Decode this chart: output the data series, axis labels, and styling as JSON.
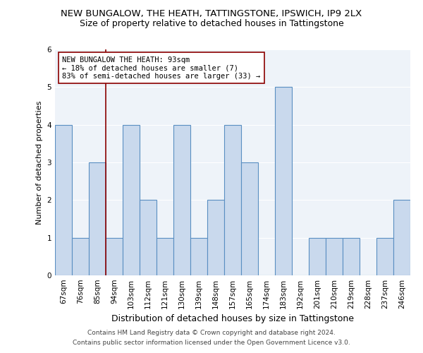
{
  "title": "NEW BUNGALOW, THE HEATH, TATTINGSTONE, IPSWICH, IP9 2LX",
  "subtitle": "Size of property relative to detached houses in Tattingstone",
  "xlabel": "Distribution of detached houses by size in Tattingstone",
  "ylabel": "Number of detached properties",
  "categories": [
    "67sqm",
    "76sqm",
    "85sqm",
    "94sqm",
    "103sqm",
    "112sqm",
    "121sqm",
    "130sqm",
    "139sqm",
    "148sqm",
    "157sqm",
    "165sqm",
    "174sqm",
    "183sqm",
    "192sqm",
    "201sqm",
    "210sqm",
    "219sqm",
    "228sqm",
    "237sqm",
    "246sqm"
  ],
  "values": [
    4,
    1,
    3,
    1,
    4,
    2,
    1,
    4,
    1,
    2,
    4,
    3,
    0,
    5,
    0,
    1,
    1,
    1,
    0,
    1,
    2
  ],
  "bar_color": "#c9d9ed",
  "bar_edge_color": "#5a8fc2",
  "reference_line_color": "#8b0000",
  "annotation_text": "NEW BUNGALOW THE HEATH: 93sqm\n← 18% of detached houses are smaller (7)\n83% of semi-detached houses are larger (33) →",
  "annotation_box_color": "#ffffff",
  "annotation_box_edge_color": "#8b0000",
  "ylim": [
    0,
    6
  ],
  "yticks": [
    0,
    1,
    2,
    3,
    4,
    5,
    6
  ],
  "footnote1": "Contains HM Land Registry data © Crown copyright and database right 2024.",
  "footnote2": "Contains public sector information licensed under the Open Government Licence v3.0.",
  "plot_bg_color": "#eef3f9",
  "title_fontsize": 9.5,
  "subtitle_fontsize": 9,
  "xlabel_fontsize": 9,
  "ylabel_fontsize": 8,
  "tick_fontsize": 7.5,
  "annotation_fontsize": 7.5,
  "footnote_fontsize": 6.5
}
